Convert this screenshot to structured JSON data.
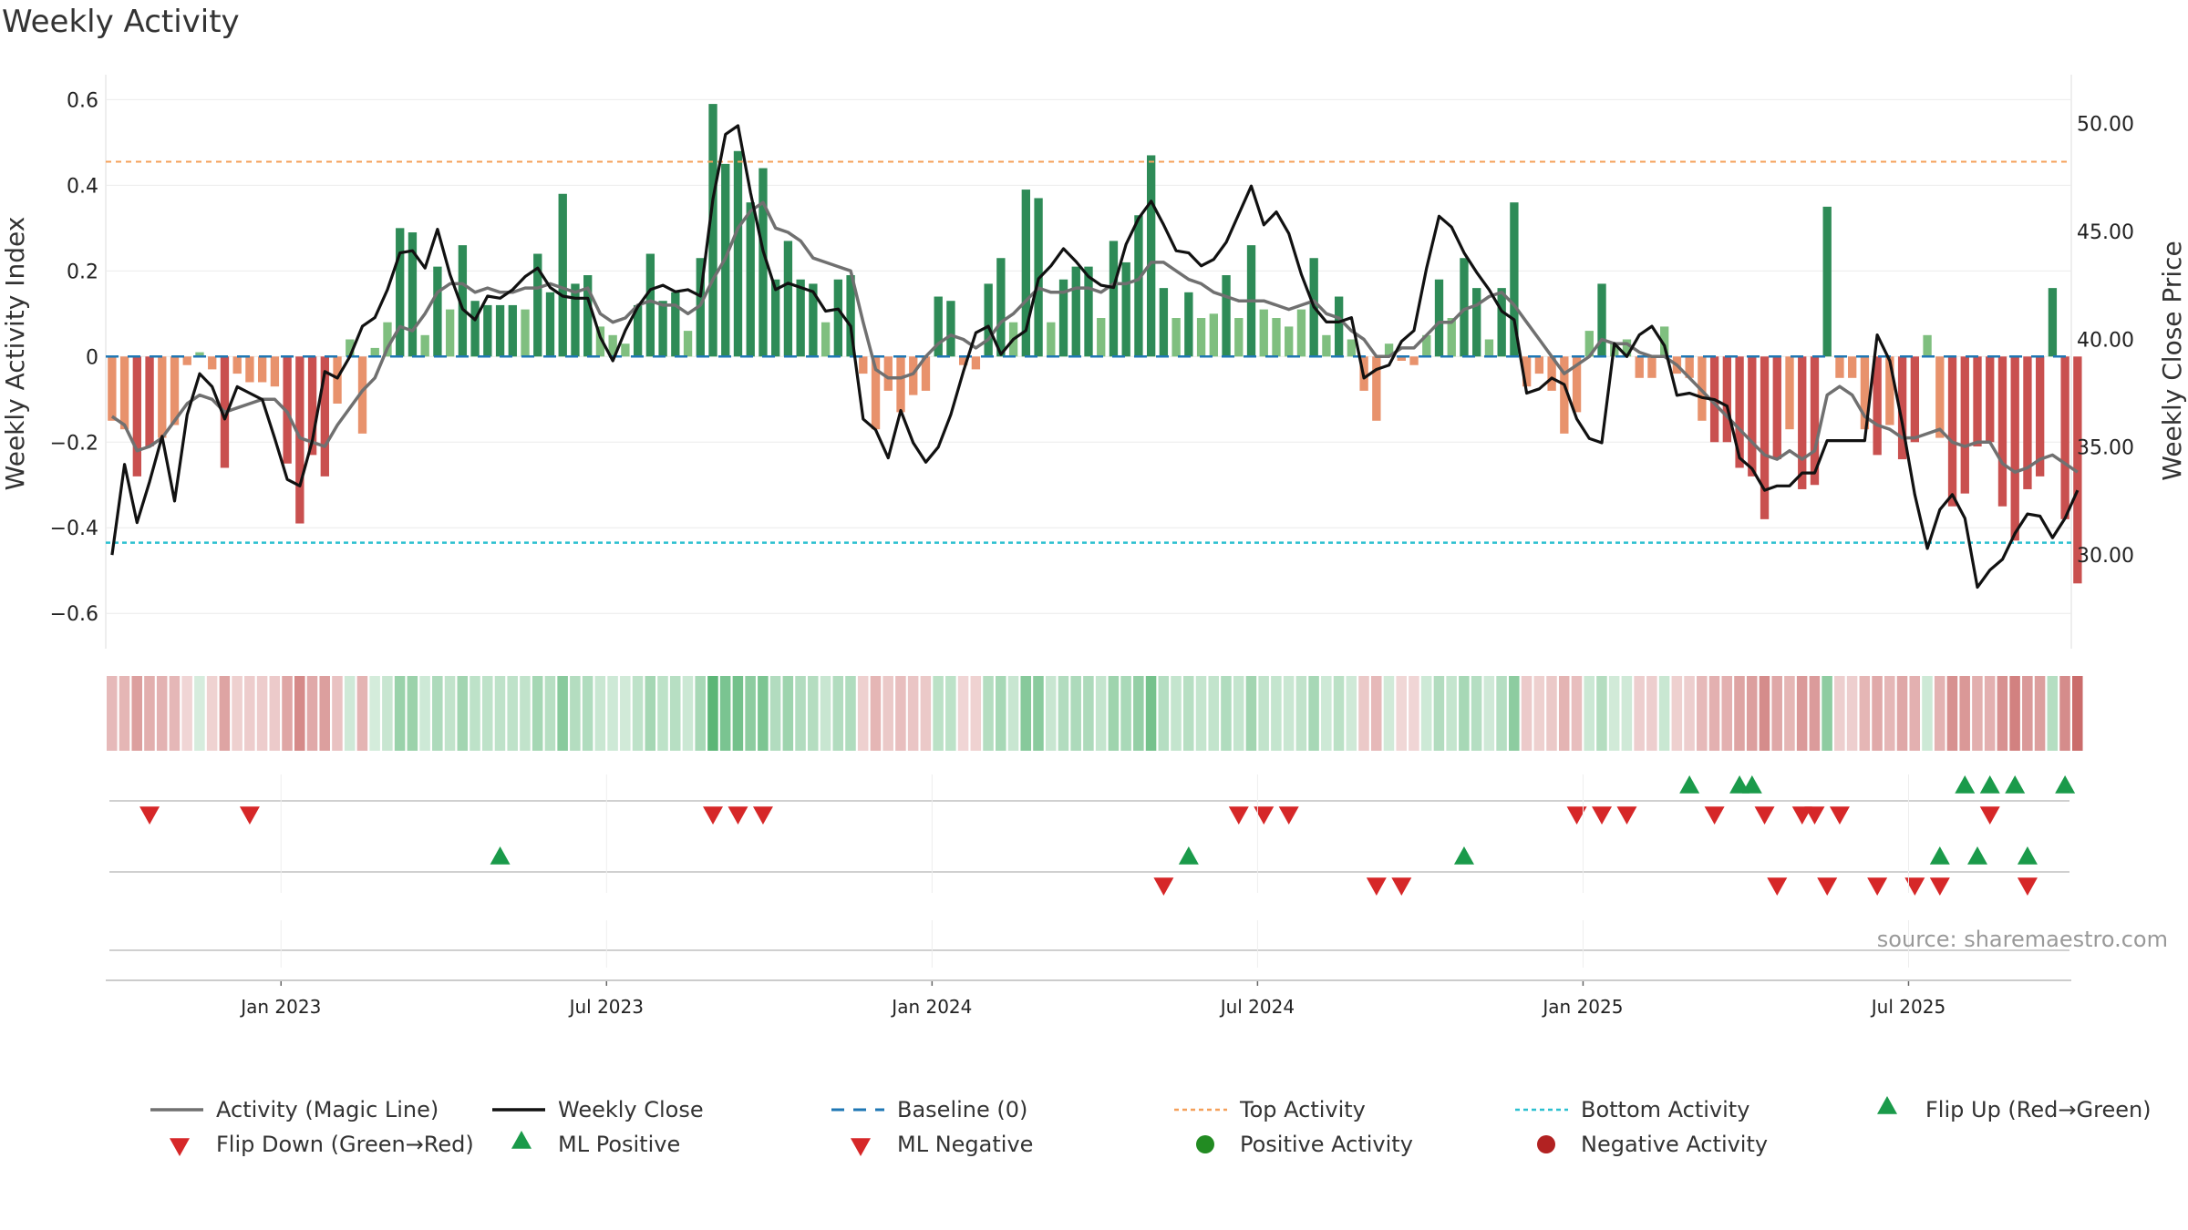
{
  "title": "Weekly Activity",
  "source": "source: sharemaestro.com",
  "colors": {
    "pos_strong": "#2e8b57",
    "pos_light": "#7fbf7f",
    "neg_strong": "#c9504f",
    "neg_light": "#e8926c",
    "magic_line": "#707070",
    "close_line": "#111111",
    "baseline": "#1f77b4",
    "top_line": "#f5a05a",
    "bottom_line": "#2cc0d0",
    "flip_up": "#1a9a4a",
    "flip_down": "#d62728",
    "positive_dot": "#228b22",
    "negative_dot": "#b22222"
  },
  "chart_data": {
    "type": "bar",
    "title": "Weekly Activity",
    "ylabel": "Weekly Activity Index",
    "y2label": "Weekly Close Price",
    "ylim": [
      -0.64,
      0.62
    ],
    "y2lim": [
      26.5,
      51.5
    ],
    "yticks": [
      "0.6",
      "0.4",
      "0.2",
      "0",
      "−0.2",
      "−0.4",
      "−0.6"
    ],
    "y2ticks": [
      "50.00",
      "45.00",
      "40.00",
      "35.00",
      "30.00"
    ],
    "x_labels": [
      "Jan 2023",
      "Jul 2023",
      "Jan 2024",
      "Jul 2024",
      "Jan 2025",
      "Jul 2025"
    ],
    "x_label_weeks": [
      14,
      40,
      66,
      92,
      118,
      144
    ],
    "top_activity": 0.455,
    "bottom_activity": -0.435,
    "weeks": 157,
    "activity": [
      -0.15,
      -0.17,
      -0.28,
      -0.21,
      -0.19,
      -0.16,
      -0.02,
      0.01,
      -0.03,
      -0.26,
      -0.04,
      -0.06,
      -0.06,
      -0.07,
      -0.25,
      -0.39,
      -0.23,
      -0.28,
      -0.11,
      0.04,
      -0.18,
      0.02,
      0.08,
      0.3,
      0.29,
      0.05,
      0.21,
      0.11,
      0.26,
      0.13,
      0.12,
      0.12,
      0.12,
      0.11,
      0.24,
      0.15,
      0.38,
      0.17,
      0.19,
      0.07,
      0.05,
      0.03,
      0.12,
      0.24,
      0.13,
      0.15,
      0.06,
      0.23,
      0.59,
      0.45,
      0.48,
      0.36,
      0.44,
      0.18,
      0.27,
      0.18,
      0.17,
      0.08,
      0.18,
      0.19,
      -0.04,
      -0.17,
      -0.08,
      -0.13,
      -0.09,
      -0.08,
      0.14,
      0.13,
      -0.02,
      -0.03,
      0.17,
      0.23,
      0.08,
      0.39,
      0.37,
      0.08,
      0.18,
      0.21,
      0.21,
      0.09,
      0.27,
      0.22,
      0.33,
      0.47,
      0.16,
      0.09,
      0.15,
      0.09,
      0.1,
      0.19,
      0.09,
      0.26,
      0.11,
      0.09,
      0.07,
      0.11,
      0.23,
      0.05,
      0.14,
      0.04,
      -0.08,
      -0.15,
      0.03,
      -0.01,
      -0.02,
      0.05,
      0.18,
      0.09,
      0.23,
      0.16,
      0.04,
      0.16,
      0.36,
      -0.07,
      -0.04,
      -0.08,
      -0.18,
      -0.13,
      0.06,
      0.17,
      0.03,
      0.04,
      -0.05,
      -0.05,
      0.07,
      -0.04,
      -0.05,
      -0.15,
      -0.2,
      -0.2,
      -0.26,
      -0.28,
      -0.38,
      -0.24,
      -0.17,
      -0.31,
      -0.3,
      0.35,
      -0.05,
      -0.05,
      -0.17,
      -0.23,
      -0.16,
      -0.24,
      -0.2,
      0.05,
      -0.19,
      -0.35,
      -0.32,
      -0.21,
      -0.2,
      -0.35,
      -0.43,
      -0.31,
      -0.28,
      0.16,
      -0.38,
      -0.53
    ],
    "magic_line": [
      -0.14,
      -0.16,
      -0.22,
      -0.21,
      -0.19,
      -0.15,
      -0.11,
      -0.09,
      -0.1,
      -0.13,
      -0.12,
      -0.11,
      -0.1,
      -0.1,
      -0.13,
      -0.19,
      -0.2,
      -0.21,
      -0.16,
      -0.12,
      -0.08,
      -0.05,
      0.02,
      0.07,
      0.06,
      0.1,
      0.15,
      0.17,
      0.17,
      0.15,
      0.16,
      0.15,
      0.15,
      0.16,
      0.16,
      0.17,
      0.16,
      0.15,
      0.16,
      0.1,
      0.08,
      0.09,
      0.12,
      0.13,
      0.12,
      0.12,
      0.1,
      0.12,
      0.18,
      0.23,
      0.3,
      0.34,
      0.36,
      0.3,
      0.29,
      0.27,
      0.23,
      0.22,
      0.21,
      0.2,
      0.08,
      -0.03,
      -0.05,
      -0.05,
      -0.04,
      0.0,
      0.03,
      0.05,
      0.04,
      0.02,
      0.04,
      0.08,
      0.1,
      0.13,
      0.16,
      0.15,
      0.15,
      0.16,
      0.16,
      0.15,
      0.17,
      0.17,
      0.18,
      0.22,
      0.22,
      0.2,
      0.18,
      0.17,
      0.15,
      0.14,
      0.13,
      0.13,
      0.13,
      0.12,
      0.11,
      0.12,
      0.13,
      0.1,
      0.09,
      0.06,
      0.04,
      0.0,
      0.0,
      0.02,
      0.02,
      0.05,
      0.08,
      0.08,
      0.11,
      0.12,
      0.14,
      0.15,
      0.12,
      0.08,
      0.04,
      0.0,
      -0.04,
      -0.02,
      0.0,
      0.04,
      0.03,
      0.03,
      0.01,
      0.0,
      0.0,
      -0.02,
      -0.05,
      -0.08,
      -0.11,
      -0.14,
      -0.17,
      -0.2,
      -0.23,
      -0.24,
      -0.22,
      -0.24,
      -0.22,
      -0.09,
      -0.07,
      -0.09,
      -0.14,
      -0.16,
      -0.17,
      -0.19,
      -0.19,
      -0.18,
      -0.17,
      -0.2,
      -0.21,
      -0.2,
      -0.2,
      -0.25,
      -0.27,
      -0.26,
      -0.24,
      -0.23,
      -0.25,
      -0.27
    ],
    "close": [
      30.0,
      34.2,
      31.5,
      33.4,
      35.5,
      32.5,
      36.5,
      38.4,
      37.8,
      36.3,
      37.8,
      37.5,
      37.2,
      35.4,
      33.5,
      33.2,
      35.3,
      38.5,
      38.2,
      39.2,
      40.6,
      41.0,
      42.3,
      44.0,
      44.1,
      43.3,
      45.1,
      43.0,
      41.4,
      40.9,
      42.0,
      41.9,
      42.3,
      42.9,
      43.3,
      42.4,
      42.0,
      41.9,
      41.9,
      40.1,
      39.0,
      40.4,
      41.5,
      42.3,
      42.5,
      42.2,
      42.3,
      42.0,
      46.5,
      49.5,
      49.9,
      46.8,
      44.1,
      42.3,
      42.6,
      42.4,
      42.2,
      41.3,
      41.4,
      40.6,
      36.3,
      35.8,
      34.5,
      36.7,
      35.2,
      34.3,
      35.0,
      36.5,
      38.5,
      40.3,
      40.6,
      39.3,
      40.0,
      40.4,
      42.8,
      43.4,
      44.2,
      43.6,
      42.9,
      42.5,
      42.4,
      44.4,
      45.6,
      46.4,
      45.3,
      44.1,
      44.0,
      43.4,
      43.7,
      44.5,
      45.8,
      47.1,
      45.3,
      45.9,
      44.9,
      43.0,
      41.5,
      40.8,
      40.8,
      41.0,
      38.2,
      38.6,
      38.8,
      39.9,
      40.4,
      43.3,
      45.7,
      45.2,
      44.0,
      43.1,
      42.3,
      41.3,
      40.9,
      37.5,
      37.7,
      38.2,
      37.9,
      36.3,
      35.4,
      35.2,
      39.8,
      39.2,
      40.2,
      40.6,
      39.7,
      37.4,
      37.5,
      37.3,
      37.2,
      36.9,
      34.5,
      34.0,
      33.0,
      33.2,
      33.2,
      33.8,
      33.8,
      35.3,
      35.3,
      35.3,
      35.3,
      40.2,
      39.0,
      36.1,
      32.8,
      30.3,
      32.1,
      32.8,
      31.7,
      28.5,
      29.3,
      29.8,
      31.0,
      31.9,
      31.8,
      30.8,
      31.7,
      33.0
    ],
    "ml_positive_weeks": [
      31,
      86,
      108,
      146,
      149,
      153
    ],
    "ml_negative_weeks": [
      84,
      101,
      103,
      133,
      137,
      141,
      144,
      146,
      153
    ],
    "flip_up_weeks": [
      126,
      130,
      131,
      148,
      150,
      152,
      156
    ],
    "flip_down_weeks": [
      3,
      11,
      48,
      50,
      52,
      90,
      92,
      94,
      117,
      119,
      121,
      128,
      132,
      135,
      136,
      138,
      150
    ],
    "legend": [
      "Activity (Magic Line)",
      "Weekly Close",
      "Baseline (0)",
      "Top Activity",
      "Bottom Activity",
      "Flip Up (Red→Green)",
      "Flip Down (Green→Red)",
      "ML Positive",
      "ML Negative",
      "Positive Activity",
      "Negative Activity"
    ]
  }
}
